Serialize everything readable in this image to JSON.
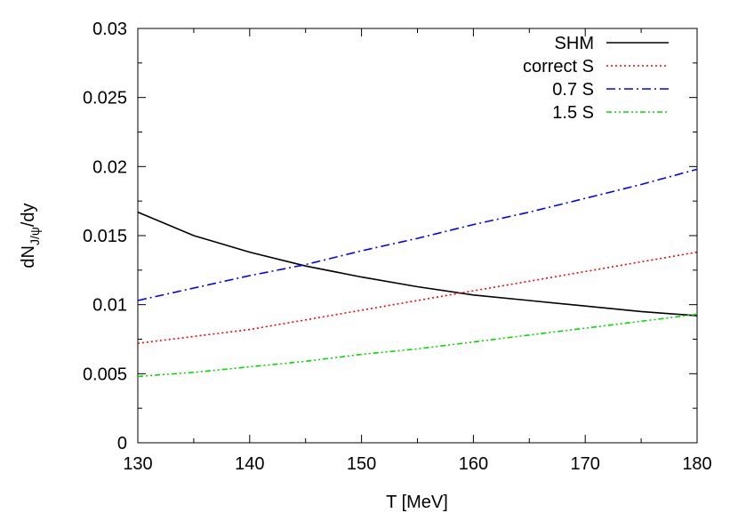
{
  "chart_data": {
    "type": "line",
    "title": "",
    "xlabel": "T [MeV]",
    "ylabel": "dN",
    "ylabel_sub": "J/ψ",
    "ylabel_tail": "/dy",
    "xlim": [
      130,
      180
    ],
    "ylim": [
      0,
      0.03
    ],
    "xticks": [
      "130",
      "140",
      "150",
      "160",
      "170",
      "180"
    ],
    "yticks": [
      "0",
      "0.005",
      "0.01",
      "0.015",
      "0.02",
      "0.025",
      "0.03"
    ],
    "grid": false,
    "legend_position": "top-right",
    "x": [
      130,
      135,
      140,
      145,
      150,
      155,
      160,
      165,
      170,
      175,
      180
    ],
    "series": [
      {
        "name": "SHM",
        "color": "#000000",
        "dash": "solid",
        "values": [
          0.0167,
          0.015,
          0.0138,
          0.0128,
          0.012,
          0.0113,
          0.0107,
          0.0103,
          0.0099,
          0.0095,
          0.0092
        ]
      },
      {
        "name": "correct S",
        "color": "#ff0000",
        "dash": "dotted",
        "values": [
          0.0072,
          0.0077,
          0.0082,
          0.0089,
          0.0096,
          0.0103,
          0.011,
          0.0117,
          0.0124,
          0.0131,
          0.0138
        ]
      },
      {
        "name": "0.7 S",
        "color": "#0000ff",
        "dash": "dashdot",
        "values": [
          0.0103,
          0.0112,
          0.0121,
          0.0129,
          0.0139,
          0.0148,
          0.0158,
          0.0167,
          0.0177,
          0.0187,
          0.0198
        ]
      },
      {
        "name": "1.5 S",
        "color": "#00dd00",
        "dash": "dashdotdot",
        "values": [
          0.0048,
          0.0051,
          0.0055,
          0.0059,
          0.0064,
          0.0068,
          0.0073,
          0.0078,
          0.0083,
          0.0088,
          0.0093
        ]
      }
    ]
  }
}
